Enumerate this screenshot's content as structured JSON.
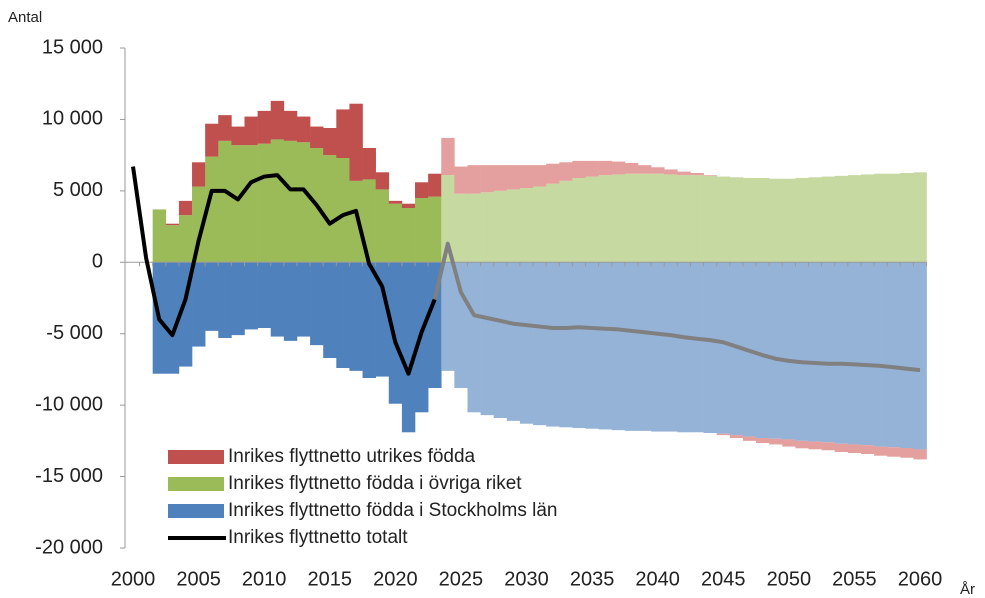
{
  "chart_data": {
    "type": "bar",
    "y_label": "Antal",
    "x_label": "År",
    "x": [
      2000,
      2001,
      2002,
      2003,
      2004,
      2005,
      2006,
      2007,
      2008,
      2009,
      2010,
      2011,
      2012,
      2013,
      2014,
      2015,
      2016,
      2017,
      2018,
      2019,
      2020,
      2021,
      2022,
      2023,
      2024,
      2025,
      2026,
      2027,
      2028,
      2029,
      2030,
      2031,
      2032,
      2033,
      2034,
      2035,
      2036,
      2037,
      2038,
      2039,
      2040,
      2041,
      2042,
      2043,
      2044,
      2045,
      2046,
      2047,
      2048,
      2049,
      2050,
      2051,
      2052,
      2053,
      2054,
      2055,
      2056,
      2057,
      2058,
      2059,
      2060
    ],
    "xlim": [
      2000,
      2060
    ],
    "xticks": [
      2000,
      2005,
      2010,
      2015,
      2020,
      2025,
      2030,
      2035,
      2040,
      2045,
      2050,
      2055,
      2060
    ],
    "ylim": [
      -20000,
      15000
    ],
    "yticks": [
      {
        "value": -20000,
        "label": "-20 000"
      },
      {
        "value": -15000,
        "label": "-15 000"
      },
      {
        "value": -10000,
        "label": "-10 000"
      },
      {
        "value": -5000,
        "label": "-5 000"
      },
      0,
      {
        "value": 5000,
        "label": "5 000"
      },
      {
        "value": 10000,
        "label": "10 000"
      },
      {
        "value": 15000,
        "label": "15 000"
      }
    ],
    "projection_from": 2024,
    "series": [
      {
        "name": "Inrikes flyttnetto utrikes födda",
        "color": "#c0504d",
        "projection_color": "#e3a09e",
        "values": [
          null,
          null,
          0,
          100,
          1000,
          1700,
          2300,
          1800,
          1300,
          2000,
          2300,
          2700,
          2100,
          1800,
          1500,
          1900,
          3400,
          5400,
          2200,
          1200,
          200,
          300,
          1100,
          1600,
          2600,
          1900,
          2000,
          1900,
          1800,
          1700,
          1600,
          1500,
          1400,
          1300,
          1200,
          1100,
          1000,
          900,
          750,
          600,
          450,
          350,
          250,
          150,
          50,
          -100,
          -200,
          -300,
          -350,
          -400,
          -500,
          -520,
          -540,
          -560,
          -580,
          -600,
          -620,
          -640,
          -660,
          -680,
          -700
        ]
      },
      {
        "name": "Inrikes flyttnetto födda i övriga riket",
        "color": "#9bbb59",
        "projection_color": "#c6d9a1",
        "values": [
          null,
          null,
          3700,
          2600,
          3300,
          5300,
          7400,
          8500,
          8200,
          8200,
          8300,
          8600,
          8500,
          8400,
          8000,
          7500,
          7300,
          5700,
          5800,
          5100,
          4100,
          3800,
          4500,
          4600,
          6100,
          4800,
          4800,
          4900,
          5000,
          5100,
          5200,
          5300,
          5500,
          5700,
          5900,
          6000,
          6100,
          6150,
          6200,
          6200,
          6200,
          6150,
          6100,
          6100,
          6050,
          6000,
          5950,
          5900,
          5900,
          5850,
          5850,
          5900,
          5950,
          6000,
          6050,
          6100,
          6150,
          6200,
          6200,
          6250,
          6300
        ]
      },
      {
        "name": "Inrikes flyttnetto födda i Stockholms län",
        "color": "#4f81bd",
        "projection_color": "#95b3d7",
        "values": [
          null,
          null,
          -7800,
          -7800,
          -7300,
          -5900,
          -4800,
          -5300,
          -5100,
          -4700,
          -4600,
          -5200,
          -5500,
          -5200,
          -5800,
          -6700,
          -7400,
          -7600,
          -8100,
          -8000,
          -9900,
          -11900,
          -10500,
          -8800,
          -7600,
          -8800,
          -10500,
          -10700,
          -10900,
          -11100,
          -11300,
          -11400,
          -11500,
          -11550,
          -11600,
          -11650,
          -11700,
          -11750,
          -11800,
          -11800,
          -11850,
          -11850,
          -11900,
          -11900,
          -11950,
          -12000,
          -12100,
          -12200,
          -12300,
          -12350,
          -12400,
          -12500,
          -12550,
          -12600,
          -12700,
          -12750,
          -12800,
          -12900,
          -12950,
          -13000,
          -13100
        ]
      },
      {
        "name": "Inrikes flyttnetto totalt",
        "type": "line",
        "color": "#000000",
        "projection_color": "#808080",
        "values": [
          6700,
          300,
          -4000,
          -5100,
          -2600,
          1500,
          5000,
          5000,
          4400,
          5600,
          6000,
          6100,
          5100,
          5100,
          4000,
          2700,
          3300,
          3600,
          -100,
          -1700,
          -5600,
          -7800,
          -4900,
          -2600,
          1300,
          -2100,
          -3700,
          -3900,
          -4100,
          -4300,
          -4400,
          -4500,
          -4600,
          -4600,
          -4550,
          -4600,
          -4650,
          -4700,
          -4800,
          -4900,
          -5000,
          -5100,
          -5250,
          -5350,
          -5450,
          -5600,
          -5900,
          -6200,
          -6500,
          -6750,
          -6900,
          -7000,
          -7050,
          -7100,
          -7100,
          -7150,
          -7200,
          -7250,
          -7350,
          -7450,
          -7550
        ]
      }
    ]
  }
}
